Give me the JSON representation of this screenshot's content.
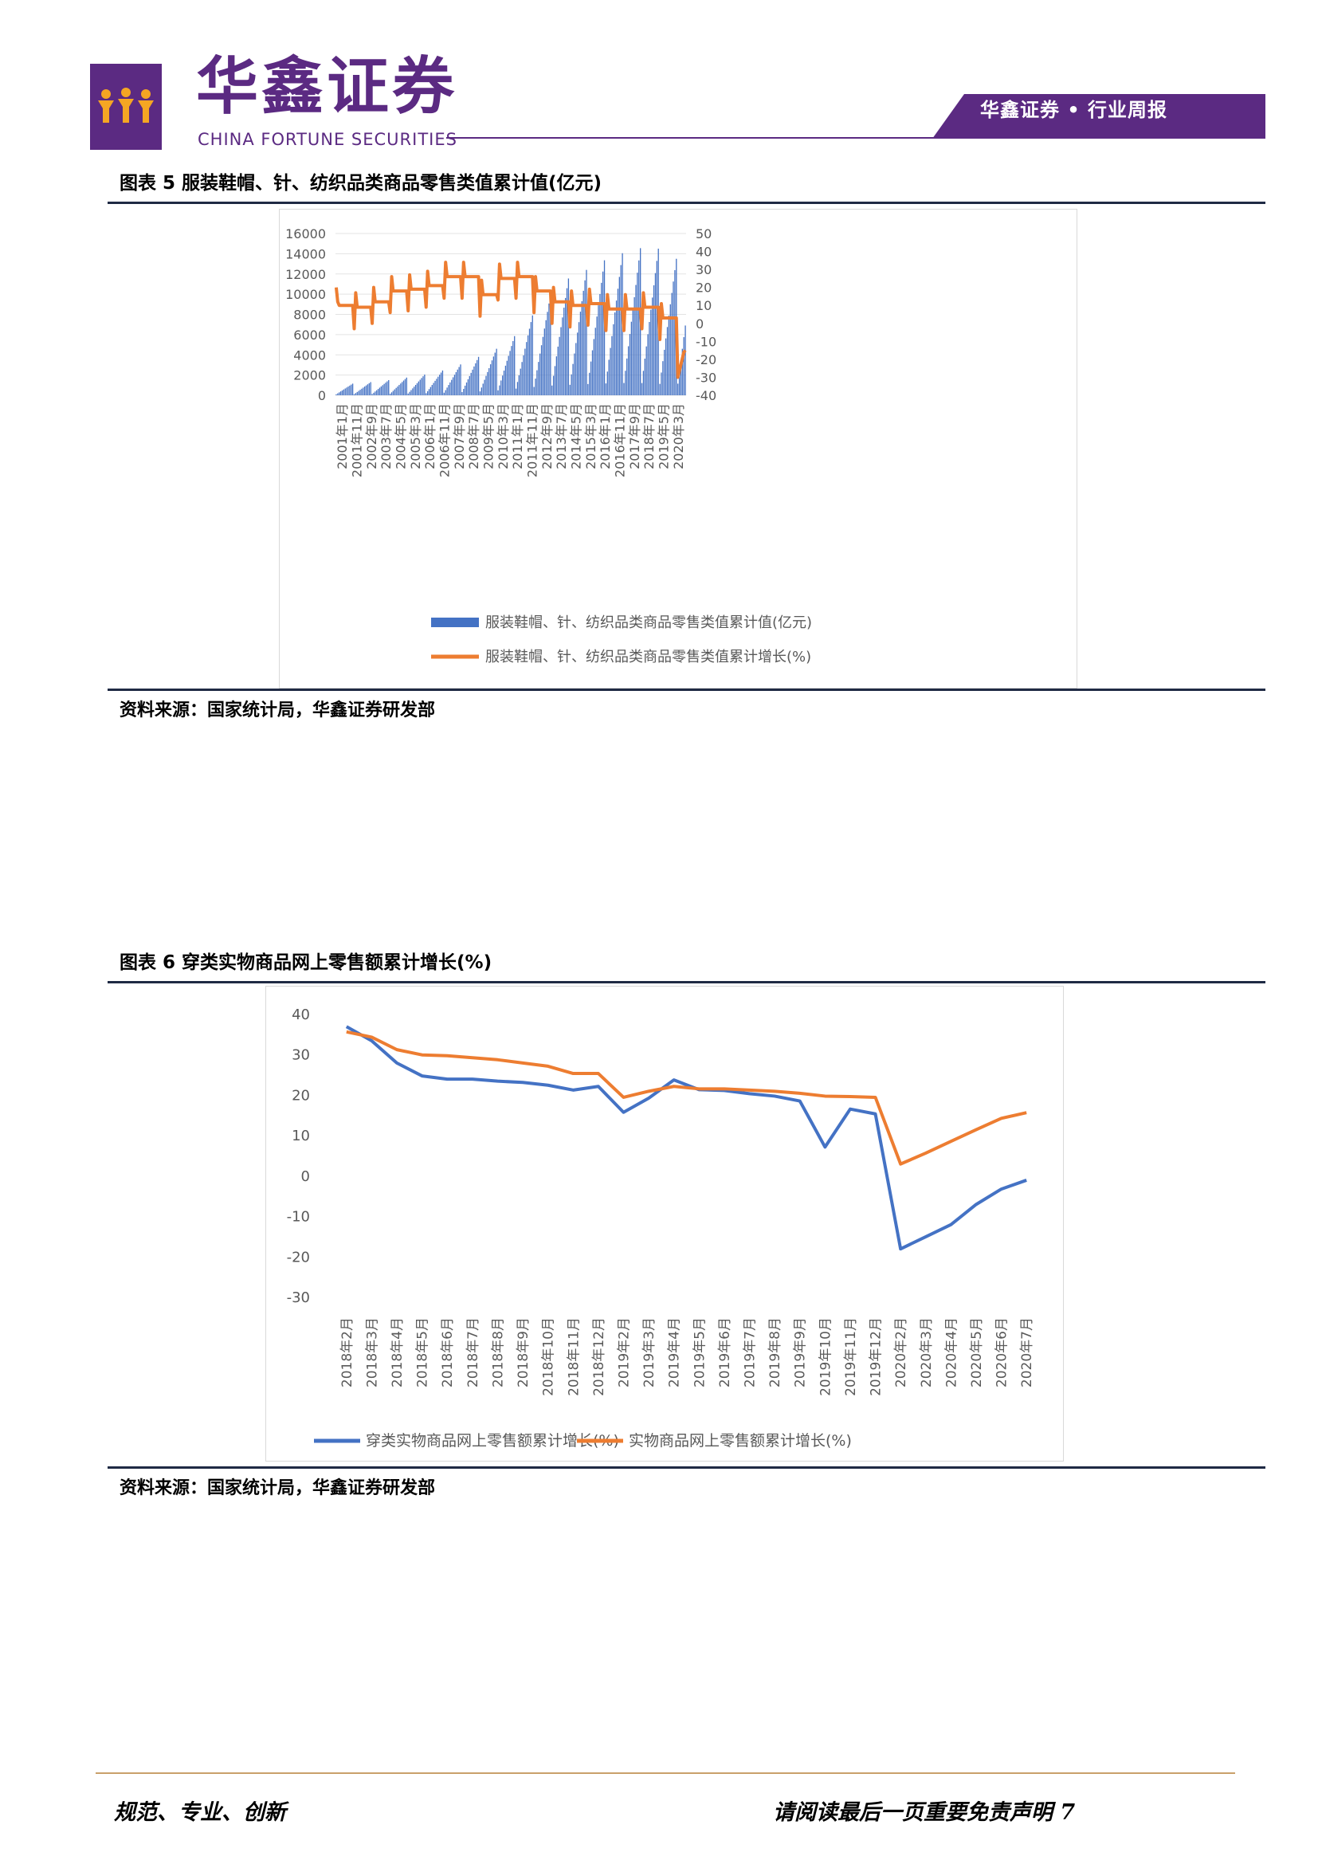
{
  "header": {
    "brand_cn": "华鑫证券",
    "brand_en": "CHINA FORTUNE SECURITIES",
    "report_type": "华鑫证券 • 行业周报",
    "brand_color": "#5b2a82",
    "logo_icon": "people-logo-icon"
  },
  "figure5": {
    "title": "图表 5 服装鞋帽、针、纺织品类商品零售类值累计值(亿元)",
    "source": "资料来源：国家统计局，华鑫证券研发部"
  },
  "figure6": {
    "title": "图表 6 穿类实物商品网上零售额累计增长(%)",
    "source": "资料来源：国家统计局，华鑫证券研发部"
  },
  "footer": {
    "left": "规范、专业、创新",
    "right": "请阅读最后一页重要免责声明 7"
  },
  "chart_data": [
    {
      "type": "bar+line",
      "title": "",
      "y_left_ticks": [
        "16000",
        "14000",
        "12000",
        "10000",
        "8000",
        "6000",
        "4000",
        "2000",
        "0"
      ],
      "y_right_ticks": [
        "50",
        "40",
        "30",
        "20",
        "10",
        "0",
        "-10",
        "-20",
        "-30",
        "-40"
      ],
      "ylim_left": [
        0,
        16000
      ],
      "ylim_right": [
        -40,
        50
      ],
      "x_tick_labels": [
        "2001年1月",
        "2001年11月",
        "2002年9月",
        "2003年7月",
        "2004年5月",
        "2005年3月",
        "2006年1月",
        "2006年11月",
        "2007年9月",
        "2008年7月",
        "2009年5月",
        "2010年3月",
        "2011年1月",
        "2011年11月",
        "2012年9月",
        "2013年7月",
        "2014年5月",
        "2015年3月",
        "2016年1月",
        "2016年11月",
        "2017年9月",
        "2018年7月",
        "2019年5月",
        "2020年3月"
      ],
      "legend": "bottom",
      "legend_items": {
        "bar": "服装鞋帽、针、纺织品类商品零售类值累计值(亿元)",
        "line": "服装鞋帽、针、纺织品类商品零售类值累计增长(%)"
      },
      "bar_color": "#4472c4",
      "line_color": "#ed7d31",
      "years": [
        2001,
        2002,
        2003,
        2004,
        2005,
        2006,
        2007,
        2008,
        2009,
        2010,
        2011,
        2012,
        2013,
        2014,
        2015,
        2016,
        2017,
        2018,
        2019,
        2020
      ],
      "months_per_year": [
        12,
        12,
        12,
        12,
        12,
        12,
        12,
        12,
        12,
        12,
        12,
        12,
        12,
        12,
        12,
        12,
        12,
        12,
        12,
        6
      ],
      "annual_totals": [
        1150,
        1300,
        1500,
        1750,
        2050,
        2450,
        3050,
        3800,
        4600,
        5850,
        7900,
        9900,
        11550,
        12400,
        13350,
        14050,
        14550,
        14500,
        13500,
        6900
      ],
      "growth_by_year": [
        10,
        9,
        12,
        18,
        19,
        21,
        26,
        26,
        16,
        25,
        26,
        18,
        12,
        10,
        11,
        8,
        8,
        9,
        3,
        -24
      ],
      "growth_start": 20,
      "growth_end": -15
    },
    {
      "type": "line",
      "title": "",
      "y_ticks": [
        "40",
        "30",
        "20",
        "10",
        "0",
        "-10",
        "-20",
        "-30"
      ],
      "ylim": [
        -30,
        40
      ],
      "legend": "bottom",
      "categories": [
        "2018年2月",
        "2018年3月",
        "2018年4月",
        "2018年5月",
        "2018年6月",
        "2018年7月",
        "2018年8月",
        "2018年9月",
        "2018年10月",
        "2018年11月",
        "2018年12月",
        "2019年2月",
        "2019年3月",
        "2019年4月",
        "2019年5月",
        "2019年6月",
        "2019年7月",
        "2019年8月",
        "2019年9月",
        "2019年10月",
        "2019年11月",
        "2019年12月",
        "2020年2月",
        "2020年3月",
        "2020年4月",
        "2020年5月",
        "2020年6月",
        "2020年7月"
      ],
      "series": [
        {
          "name": "穿类实物商品网上零售额累计增长(%)",
          "color": "#4472c4",
          "values": [
            37,
            33.5,
            28,
            24.8,
            24,
            24,
            23.5,
            23.2,
            22.5,
            21.3,
            22.2,
            15.8,
            19.3,
            23.8,
            21.4,
            21.2,
            20.4,
            19.8,
            18.6,
            7.2,
            16.6,
            15.4,
            -18,
            -15,
            -12,
            -7,
            -3.2,
            -1
          ]
        },
        {
          "name": "实物商品网上零售额累计增长(%)",
          "color": "#ed7d31",
          "values": [
            35.7,
            34.4,
            31.3,
            30,
            29.8,
            29.3,
            28.8,
            28,
            27.2,
            25.4,
            25.4,
            19.5,
            21,
            22.2,
            21.6,
            21.6,
            21.3,
            21,
            20.5,
            19.8,
            19.7,
            19.5,
            3,
            5.7,
            8.6,
            11.5,
            14.3,
            15.7
          ]
        }
      ]
    }
  ]
}
